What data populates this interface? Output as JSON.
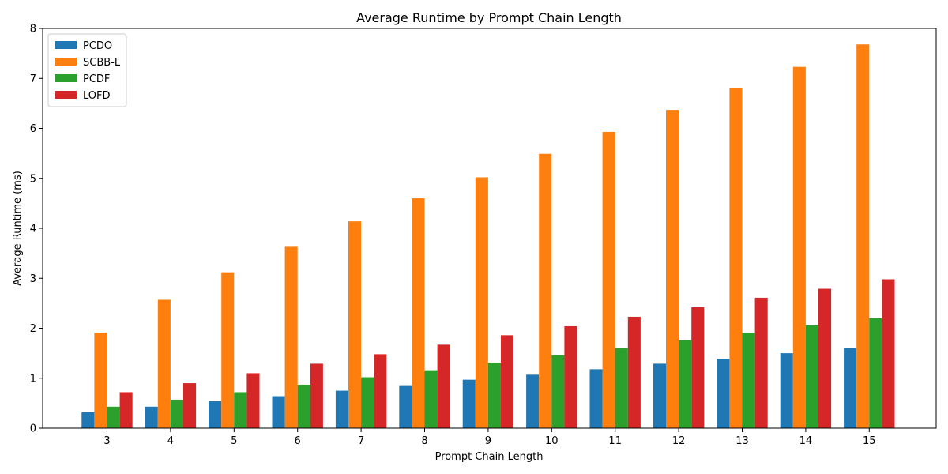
{
  "chart_data": {
    "type": "bar",
    "title": "Average Runtime by Prompt Chain Length",
    "xlabel": "Prompt Chain Length",
    "ylabel": "Average Runtime (ms)",
    "ylim": [
      0,
      8
    ],
    "yticks": [
      0,
      1,
      2,
      3,
      4,
      5,
      6,
      7,
      8
    ],
    "categories": [
      "3",
      "4",
      "5",
      "6",
      "7",
      "8",
      "9",
      "10",
      "11",
      "12",
      "13",
      "14",
      "15"
    ],
    "legend_position": "top-left",
    "grid": false,
    "series": [
      {
        "name": "PCDO",
        "color": "#1f77b4",
        "values": [
          0.32,
          0.43,
          0.54,
          0.64,
          0.75,
          0.86,
          0.97,
          1.07,
          1.18,
          1.29,
          1.39,
          1.5,
          1.61
        ]
      },
      {
        "name": "SCBB-L",
        "color": "#ff7f0e",
        "values": [
          1.91,
          2.57,
          3.12,
          3.63,
          4.14,
          4.6,
          5.02,
          5.49,
          5.93,
          6.37,
          6.8,
          7.23,
          7.68
        ]
      },
      {
        "name": "PCDF",
        "color": "#2ca02c",
        "values": [
          0.43,
          0.57,
          0.72,
          0.87,
          1.02,
          1.16,
          1.31,
          1.46,
          1.61,
          1.76,
          1.91,
          2.06,
          2.2
        ]
      },
      {
        "name": "LOFD",
        "color": "#d62728",
        "values": [
          0.72,
          0.9,
          1.1,
          1.29,
          1.48,
          1.67,
          1.86,
          2.04,
          2.23,
          2.42,
          2.61,
          2.79,
          2.98
        ]
      }
    ]
  }
}
